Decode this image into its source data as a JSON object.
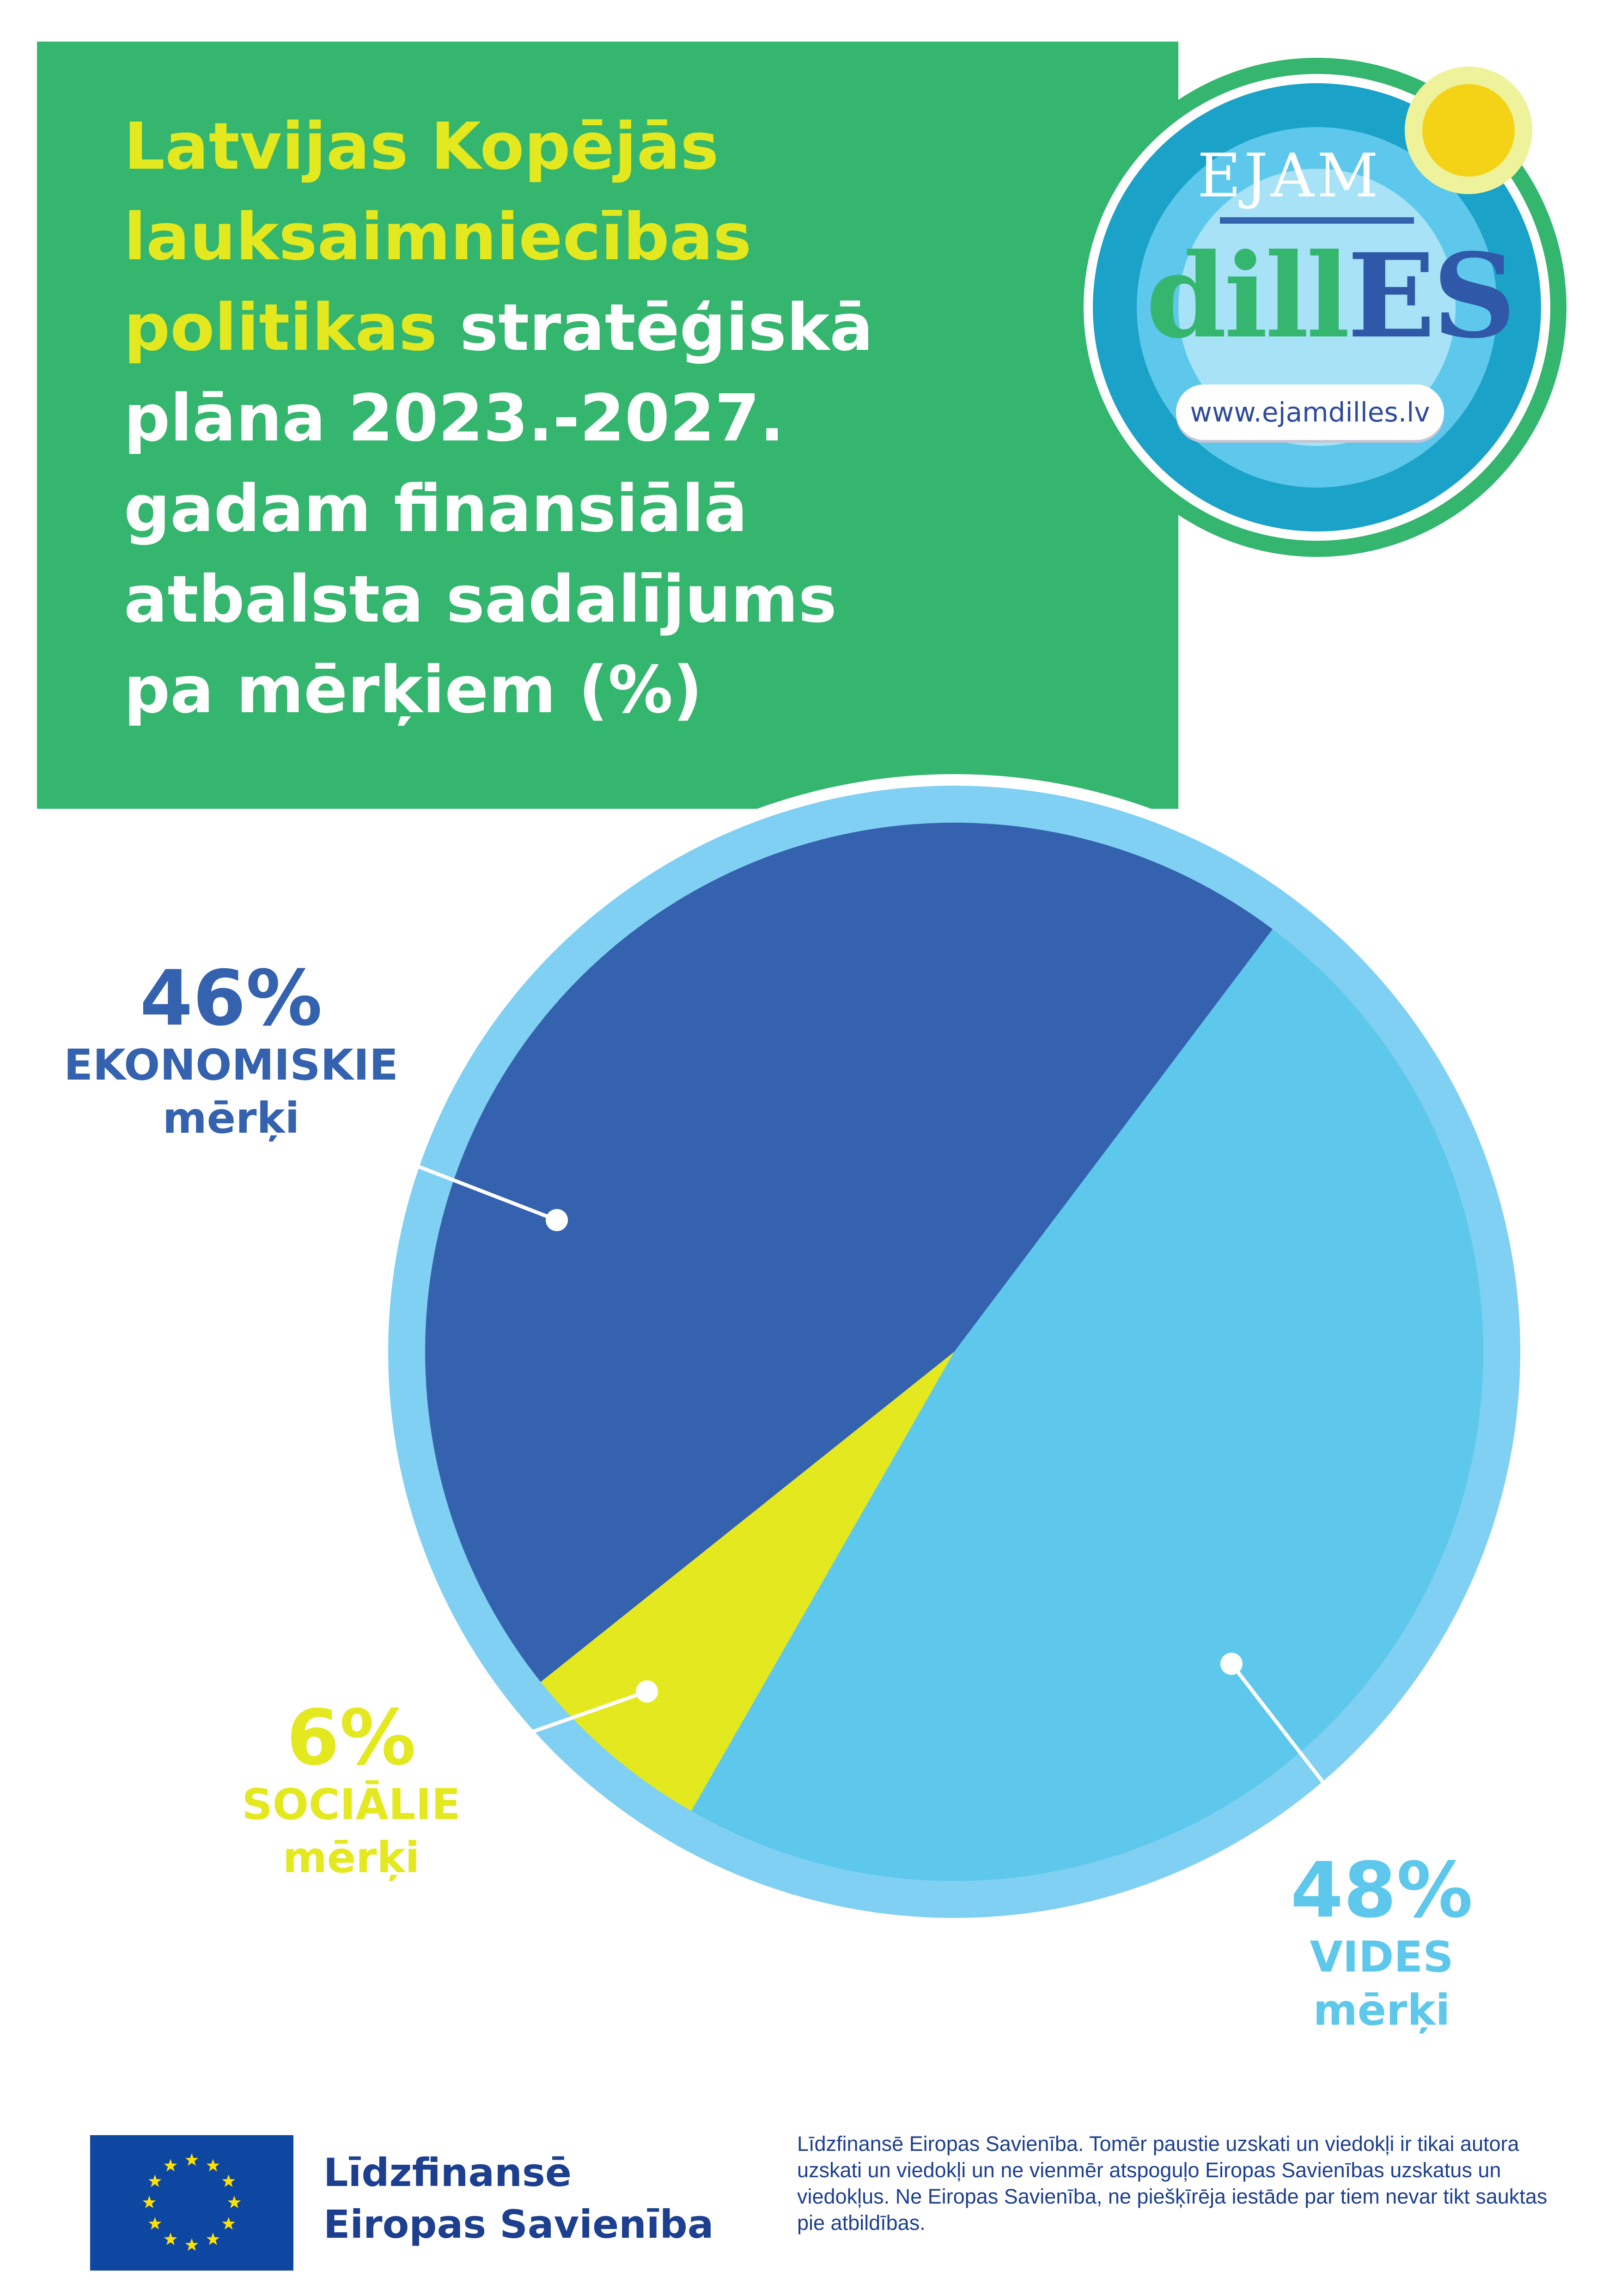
{
  "title": {
    "highlight_lines": [
      "Latvijas Kopējās",
      "lauksaimniecības",
      "politikas"
    ],
    "rest_line_3": " stratēģiskā",
    "rest_lines": [
      "plāna 2023.-2027.",
      "gadam finansiālā",
      "atbalsta sadalījums",
      "pa mērķiem (%)"
    ]
  },
  "logo": {
    "ejam": "EJAM",
    "dill": "dill",
    "es": "ES",
    "url": "www.ejamdilles.lv"
  },
  "colors": {
    "green": "#34b66e",
    "economic": "#3462ae",
    "environmental": "#5dc8eb",
    "social": "#e4e81e",
    "ring": "#7fd0f2",
    "yellow_text": "#e4e81e"
  },
  "chart_data": {
    "type": "pie",
    "title": "Latvijas Kopējās lauksaimniecības politikas stratēģiskā plāna 2023.-2027. gadam finansiālā atbalsta sadalījums pa mērķiem (%)",
    "unit": "%",
    "slices": [
      {
        "key": "economic",
        "percent_label": "46%",
        "value": 46,
        "category": "EKONOMISKIE",
        "sub": "mērķi",
        "color": "#3462ae"
      },
      {
        "key": "environmental",
        "percent_label": "48%",
        "value": 48,
        "category": "VIDES",
        "sub": "mērķi",
        "color": "#5dc8eb"
      },
      {
        "key": "social",
        "percent_label": "6%",
        "value": 6,
        "category": "SOCIĀLIE",
        "sub": "mērķi",
        "color": "#e4e81e"
      }
    ]
  },
  "footer": {
    "eu_line_1": "Līdzfinansē",
    "eu_line_2": "Eiropas Savienība",
    "disclaimer": "Līdzfinansē Eiropas Savienība. Tomēr paustie uzskati un viedokļi ir tikai autora uzskati un viedokļi un ne vienmēr atspoguļo Eiropas Savienības uzskatus un viedokļus. Ne Eiropas Savienība, ne piešķīrēja iestāde par tiem nevar tikt sauktas pie atbildības."
  }
}
